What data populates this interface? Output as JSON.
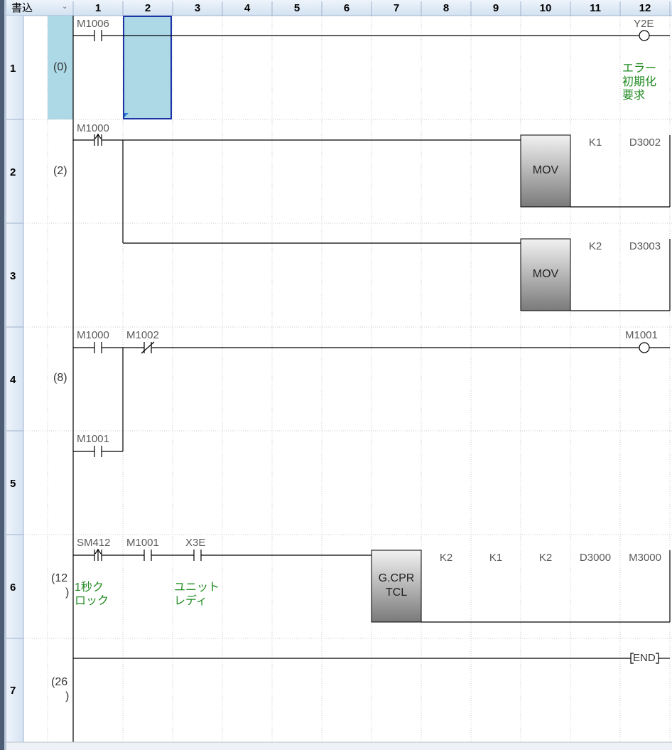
{
  "header": {
    "mode_label": "書込",
    "mode_dropdown_icon": "chevron-down-icon",
    "columns": [
      "1",
      "2",
      "3",
      "4",
      "5",
      "6",
      "7",
      "8",
      "9",
      "10",
      "11",
      "12"
    ]
  },
  "rows": [
    "1",
    "2",
    "3",
    "4",
    "5",
    "6",
    "7"
  ],
  "colors": {
    "header_bg": "#dde9f6",
    "selection_fill": "#add8e6",
    "selection_border": "#1c34a8",
    "instruction_box_top": "#f2f2f2",
    "instruction_box_bottom": "#7a7a7a",
    "comment_text": "#1f8a1f",
    "ladder_line": "#000000"
  },
  "ladder": {
    "rung1": {
      "step": "(0)",
      "contact_device": "M1006",
      "contact_type": "normally-open",
      "coil_device": "Y2E",
      "coil_comment": "エラー\n初期化\n要求"
    },
    "rung2": {
      "step": "(2)",
      "contact_device": "M1000",
      "contact_type": "rising-edge",
      "instructions": [
        {
          "name": "MOV",
          "operands": [
            "K1",
            "D3002"
          ]
        },
        {
          "name": "MOV",
          "operands": [
            "K2",
            "D3003"
          ]
        }
      ]
    },
    "rung3": {
      "step": "(8)",
      "contacts": [
        {
          "device": "M1000",
          "type": "normally-open"
        },
        {
          "device": "M1002",
          "type": "normally-closed"
        },
        {
          "device": "M1001",
          "type": "normally-open",
          "branch": true
        }
      ],
      "coil_device": "M1001"
    },
    "rung4": {
      "step_line1": "(12",
      "step_line2": ")",
      "contacts": [
        {
          "device": "SM412",
          "type": "rising-edge",
          "comment": "1秒ク\nロック"
        },
        {
          "device": "M1001",
          "type": "normally-open",
          "comment": ""
        },
        {
          "device": "X3E",
          "type": "normally-open",
          "comment": "ユニット\nレディ"
        }
      ],
      "instruction": {
        "name_line1": "G.CPR",
        "name_line2": "TCL",
        "operands": [
          "K2",
          "K1",
          "K2",
          "D3000",
          "M3000"
        ]
      }
    },
    "rung5": {
      "step_line1": "(26",
      "step_line2": ")",
      "end_label": "END"
    }
  }
}
